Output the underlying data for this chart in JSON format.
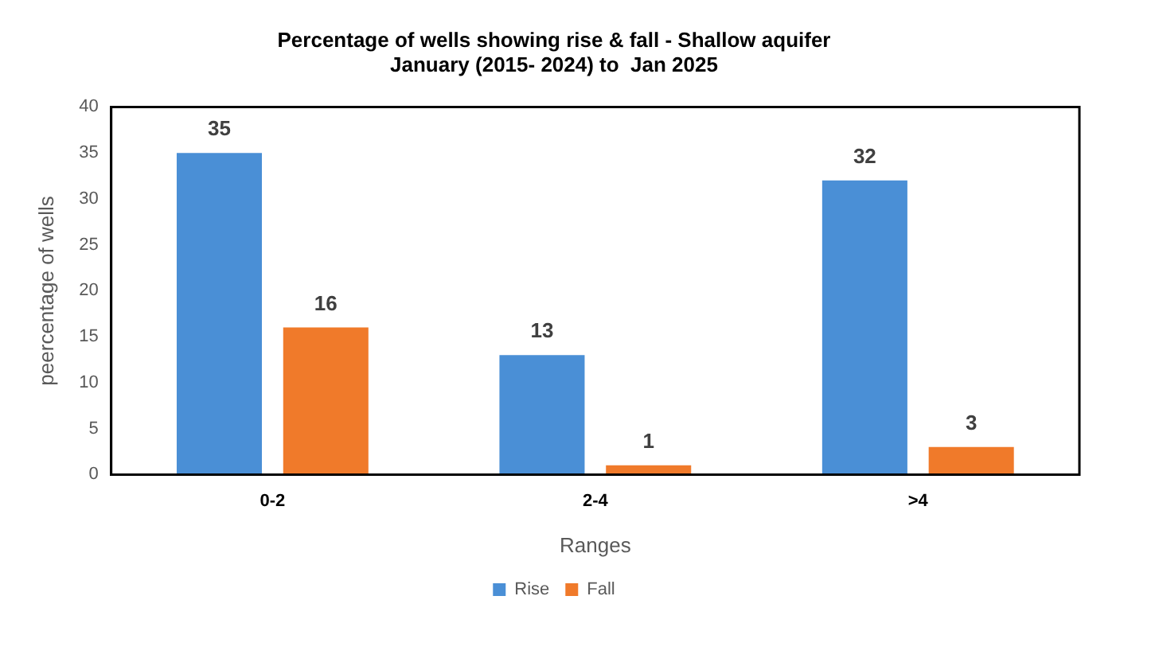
{
  "chart_data": {
    "type": "bar",
    "title": "Percentage of wells showing rise & fall - Shallow aquifer\nJanuary (2015- 2024) to  Jan 2025",
    "xlabel": "Ranges",
    "ylabel": "peercentage of wells",
    "categories": [
      "0-2",
      "2-4",
      ">4"
    ],
    "series": [
      {
        "name": "Rise",
        "color": "#4a8fd6",
        "values": [
          35,
          13,
          32
        ]
      },
      {
        "name": "Fall",
        "color": "#f07a2a",
        "values": [
          16,
          1,
          3
        ]
      }
    ],
    "ylim": [
      0,
      40
    ],
    "yticks": [
      0,
      5,
      10,
      15,
      20,
      25,
      30,
      35,
      40
    ],
    "grid": false,
    "legend": "bottom",
    "data_labels": true
  }
}
